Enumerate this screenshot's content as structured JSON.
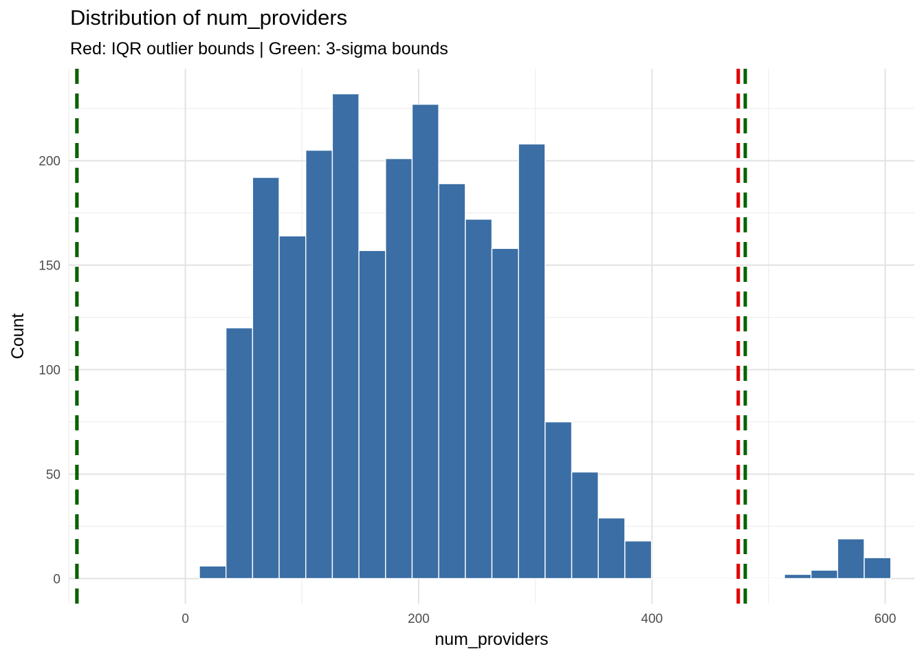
{
  "chart_data": {
    "type": "bar",
    "title": "Distribution of num_providers",
    "subtitle": "Red: IQR outlier bounds | Green: 3-sigma bounds",
    "xlabel": "num_providers",
    "ylabel": "Count",
    "xlim": [
      -100,
      625
    ],
    "ylim": [
      -12,
      244
    ],
    "x_ticks": [
      0,
      200,
      400,
      600
    ],
    "y_ticks": [
      0,
      50,
      100,
      150,
      200
    ],
    "bin_width": 22.8,
    "bins": [
      {
        "x": 23.4,
        "count": 6
      },
      {
        "x": 46.2,
        "count": 120
      },
      {
        "x": 69.0,
        "count": 192
      },
      {
        "x": 91.8,
        "count": 164
      },
      {
        "x": 114.6,
        "count": 205
      },
      {
        "x": 137.4,
        "count": 232
      },
      {
        "x": 160.2,
        "count": 157
      },
      {
        "x": 183.0,
        "count": 201
      },
      {
        "x": 205.8,
        "count": 227
      },
      {
        "x": 228.6,
        "count": 189
      },
      {
        "x": 251.4,
        "count": 172
      },
      {
        "x": 274.2,
        "count": 158
      },
      {
        "x": 297.0,
        "count": 208
      },
      {
        "x": 319.8,
        "count": 75
      },
      {
        "x": 342.6,
        "count": 51
      },
      {
        "x": 365.4,
        "count": 29
      },
      {
        "x": 388.2,
        "count": 18
      },
      {
        "x": 411.0,
        "count": 0
      },
      {
        "x": 433.8,
        "count": 0
      },
      {
        "x": 456.6,
        "count": 0
      },
      {
        "x": 479.4,
        "count": 0
      },
      {
        "x": 502.2,
        "count": 0
      },
      {
        "x": 525.0,
        "count": 2
      },
      {
        "x": 547.8,
        "count": 4
      },
      {
        "x": 570.6,
        "count": 19
      },
      {
        "x": 593.4,
        "count": 10
      }
    ],
    "bar_color": "#3A6EA5",
    "bar_edge_color": "#ffffff",
    "reference_lines": [
      {
        "kind": "IQR",
        "color": "#E00000",
        "x": [
          -93,
          474
        ]
      },
      {
        "kind": "3-sigma",
        "color": "#006400",
        "x": [
          -93,
          480
        ]
      }
    ],
    "grid": true,
    "legend": "none"
  }
}
